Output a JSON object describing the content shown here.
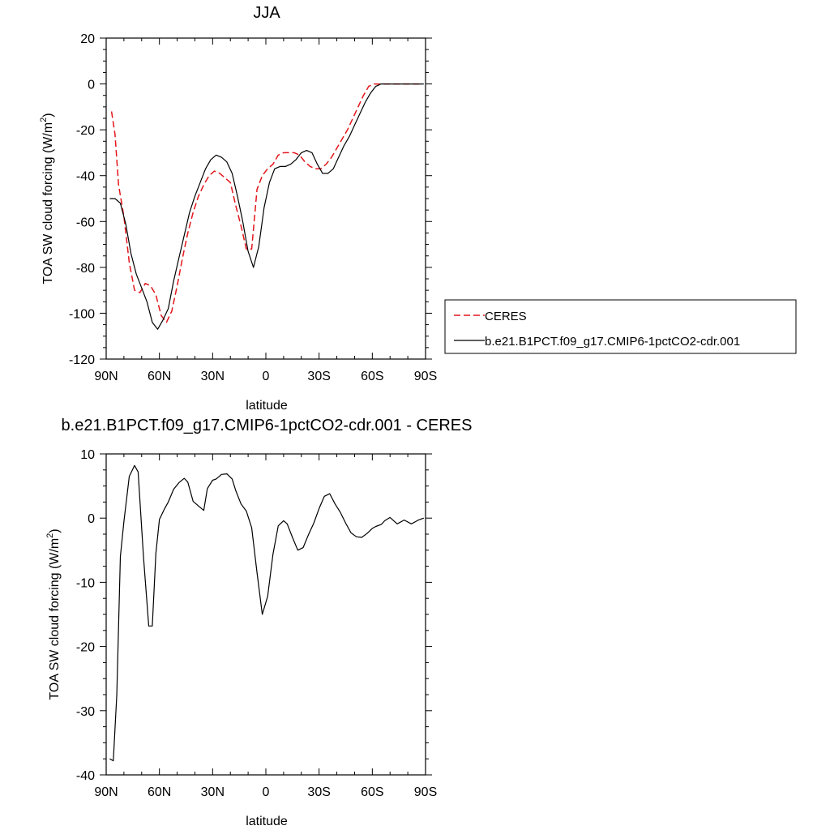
{
  "chart_data": [
    {
      "type": "line",
      "title": "JJA",
      "xlabel": "latitude",
      "ylabel": "TOA SW cloud forcing (W/m",
      "ylabel_sup": "2",
      "ylabel_end": ")",
      "xlim": [
        90,
        -90
      ],
      "ylim": [
        -120,
        20
      ],
      "xticks": [
        {
          "value": 90,
          "label": "90N"
        },
        {
          "value": 60,
          "label": "60N"
        },
        {
          "value": 30,
          "label": "30N"
        },
        {
          "value": 0,
          "label": "0"
        },
        {
          "value": -30,
          "label": "30S"
        },
        {
          "value": -60,
          "label": "60S"
        },
        {
          "value": -90,
          "label": "90S"
        }
      ],
      "yticks": [
        {
          "value": 20,
          "label": "20"
        },
        {
          "value": 0,
          "label": "0"
        },
        {
          "value": -20,
          "label": "-20"
        },
        {
          "value": -40,
          "label": "-40"
        },
        {
          "value": -60,
          "label": "-60"
        },
        {
          "value": -80,
          "label": "-80"
        },
        {
          "value": -100,
          "label": "-100"
        },
        {
          "value": -120,
          "label": "-120"
        }
      ],
      "series": [
        {
          "name": "CERES",
          "color": "#e3161b",
          "dash": "dashed",
          "x": [
            87,
            85,
            83,
            80,
            77,
            74,
            71,
            68,
            65,
            62,
            59,
            56,
            53,
            50,
            47,
            44,
            41,
            38,
            35,
            32,
            29,
            26,
            23,
            20,
            17,
            14,
            11,
            8,
            5,
            2,
            -1,
            -4,
            -7,
            -10,
            -13,
            -16,
            -19,
            -22,
            -25,
            -28,
            -31,
            -34,
            -37,
            -40,
            -43,
            -46,
            -49,
            -52,
            -55,
            -58,
            -61,
            -64,
            -67,
            -70,
            -73,
            -76,
            -79,
            -82,
            -85,
            -88
          ],
          "y": [
            -12,
            -22,
            -44,
            -58,
            -78,
            -90,
            -91,
            -87,
            -88,
            -92,
            -101,
            -104,
            -99,
            -88,
            -76,
            -65,
            -56,
            -49,
            -44,
            -40,
            -38,
            -39,
            -41,
            -43,
            -53,
            -62,
            -72,
            -72,
            -46,
            -40,
            -37,
            -35,
            -31,
            -30,
            -30,
            -30,
            -31,
            -34,
            -36,
            -37,
            -37,
            -35,
            -32,
            -28,
            -24,
            -20,
            -15,
            -10,
            -5,
            -1,
            0,
            0,
            0,
            0,
            0,
            0,
            0,
            0,
            0,
            0
          ]
        },
        {
          "name": "b.e21.B1PCT.f09_g17.CMIP6-1pctCO2-cdr.001",
          "color": "#000000",
          "dash": "solid",
          "x": [
            88,
            85,
            82,
            79,
            76,
            73,
            70,
            67,
            64,
            61,
            58,
            55,
            52,
            49,
            46,
            43,
            40,
            37,
            34,
            31,
            28,
            25,
            22,
            19,
            16,
            13,
            10,
            7,
            4,
            1,
            -2,
            -5,
            -8,
            -11,
            -14,
            -17,
            -20,
            -23,
            -26,
            -29,
            -32,
            -35,
            -38,
            -41,
            -44,
            -47,
            -50,
            -53,
            -56,
            -59,
            -62,
            -65,
            -68,
            -71,
            -74,
            -77,
            -80,
            -83,
            -86,
            -89
          ],
          "y": [
            -50,
            -50,
            -52,
            -61,
            -74,
            -83,
            -89,
            -95,
            -104,
            -107,
            -103,
            -98,
            -86,
            -76,
            -66,
            -56,
            -49,
            -43,
            -37,
            -33,
            -31,
            -32,
            -34,
            -39,
            -49,
            -60,
            -73,
            -80,
            -71,
            -54,
            -43,
            -37,
            -36,
            -36,
            -35,
            -33,
            -30,
            -29,
            -30,
            -35,
            -39,
            -39,
            -37,
            -32,
            -27,
            -23,
            -18,
            -13,
            -8,
            -4,
            -1,
            0,
            0,
            0,
            0,
            0,
            0,
            0,
            0,
            0
          ]
        }
      ],
      "legend": {
        "placement": "right",
        "entries": [
          {
            "label": "CERES",
            "color": "#e3161b",
            "dash": "dashed"
          },
          {
            "label": "b.e21.B1PCT.f09_g17.CMIP6-1pctCO2-cdr.001",
            "color": "#000000",
            "dash": "solid"
          }
        ]
      }
    },
    {
      "type": "line",
      "title": "b.e21.B1PCT.f09_g17.CMIP6-1pctCO2-cdr.001 - CERES",
      "xlabel": "latitude",
      "ylabel": "TOA SW cloud forcing (W/m",
      "ylabel_sup": "2",
      "ylabel_end": ")",
      "xlim": [
        90,
        -90
      ],
      "ylim": [
        -40,
        10
      ],
      "xticks": [
        {
          "value": 90,
          "label": "90N"
        },
        {
          "value": 60,
          "label": "60N"
        },
        {
          "value": 30,
          "label": "30N"
        },
        {
          "value": 0,
          "label": "0"
        },
        {
          "value": -30,
          "label": "30S"
        },
        {
          "value": -60,
          "label": "60S"
        },
        {
          "value": -90,
          "label": "90S"
        }
      ],
      "yticks": [
        {
          "value": 10,
          "label": "10"
        },
        {
          "value": 0,
          "label": "0"
        },
        {
          "value": -10,
          "label": "-10"
        },
        {
          "value": -20,
          "label": "-20"
        },
        {
          "value": -30,
          "label": "-30"
        },
        {
          "value": -40,
          "label": "-40"
        }
      ],
      "series": [
        {
          "color": "#000000",
          "dash": "solid",
          "x": [
            88,
            86,
            84,
            82,
            80,
            77,
            74,
            72,
            69,
            66,
            64,
            62,
            60,
            57,
            55,
            52,
            49,
            46,
            44,
            41,
            38,
            35,
            33,
            30,
            28,
            25,
            22,
            19,
            17,
            14,
            11,
            8,
            5,
            2,
            -1,
            -4,
            -7,
            -10,
            -12,
            -15,
            -18,
            -21,
            -24,
            -27,
            -30,
            -33,
            -36,
            -39,
            -42,
            -45,
            -48,
            -51,
            -54,
            -57,
            -60,
            -62,
            -65,
            -67,
            -70,
            -74,
            -78,
            -82,
            -86,
            -89
          ],
          "y": [
            -37.5,
            -37.8,
            -27.5,
            -6,
            -0.5,
            6.5,
            8.2,
            7.2,
            -6,
            -16.8,
            -16.8,
            -5.5,
            -0.2,
            1.5,
            2.5,
            4.5,
            5.5,
            6.2,
            5.6,
            2.6,
            1.9,
            1.2,
            4.6,
            5.9,
            6.1,
            6.8,
            6.9,
            6.1,
            4.3,
            2.2,
            1.1,
            -1.5,
            -8.5,
            -15,
            -12.2,
            -5.6,
            -1.2,
            -0.4,
            -0.9,
            -3,
            -5,
            -4.6,
            -2.6,
            -0.8,
            1.5,
            3.4,
            3.8,
            2.2,
            0.9,
            -0.8,
            -2.3,
            -2.9,
            -3,
            -2.4,
            -1.6,
            -1.3,
            -1,
            -0.4,
            0.1,
            -0.9,
            -0.3,
            -0.9,
            -0.3,
            0
          ]
        }
      ]
    }
  ]
}
